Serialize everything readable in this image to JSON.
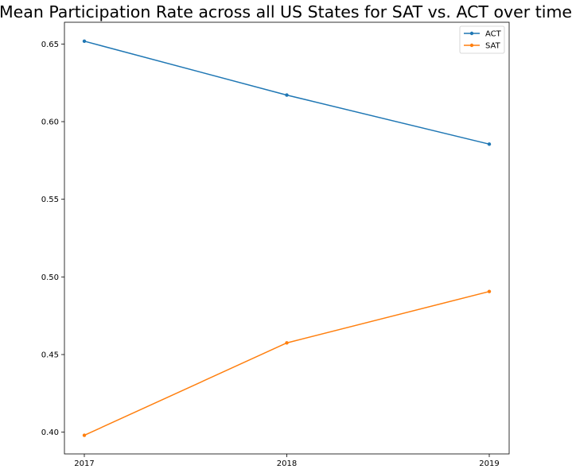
{
  "chart_data": {
    "type": "line",
    "title": "Mean Participation Rate across all US States for SAT vs. ACT over time",
    "xlabel": "",
    "ylabel": "",
    "x": [
      "2017",
      "2018",
      "2019"
    ],
    "ylim": [
      0.386,
      0.664
    ],
    "yticks": [
      "0.40",
      "0.45",
      "0.50",
      "0.55",
      "0.60",
      "0.65"
    ],
    "grid": false,
    "legend_position": "top-right",
    "series": [
      {
        "name": "ACT",
        "color": "#1f77b4",
        "marker": "circle",
        "values": [
          0.6518,
          0.6171,
          0.5855
        ]
      },
      {
        "name": "SAT",
        "color": "#ff7f0e",
        "marker": "circle",
        "values": [
          0.398,
          0.4575,
          0.4906
        ]
      }
    ]
  }
}
